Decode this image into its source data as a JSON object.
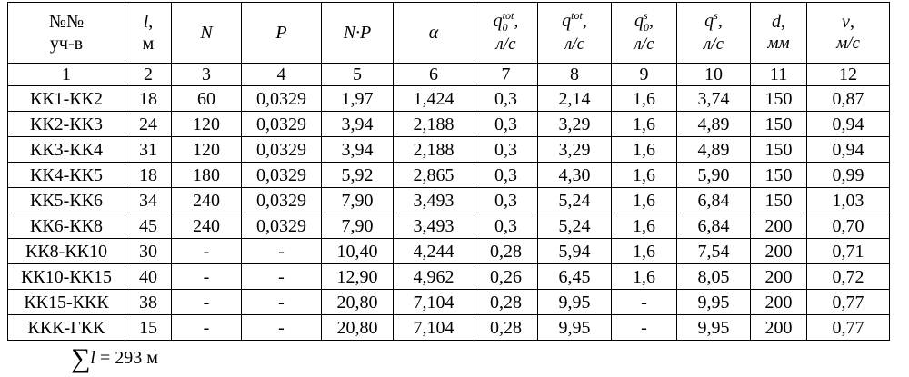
{
  "table": {
    "header": [
      {
        "line1": "№№",
        "line2": "уч-в"
      },
      {
        "sym": "l",
        "after": ",",
        "unit": "м"
      },
      {
        "sym": "N"
      },
      {
        "sym": "P"
      },
      {
        "sym": "N·P"
      },
      {
        "sym": "α"
      },
      {
        "sym": "q",
        "sub": "0",
        "sup": "tot",
        "after": ",",
        "unit": "л/с"
      },
      {
        "sym": "q",
        "sup": "tot",
        "after": ",",
        "unit": "л/с"
      },
      {
        "sym": "q",
        "sub": "0",
        "sup": "s",
        "after": ",",
        "unit": "л/с"
      },
      {
        "sym": "q",
        "sup": "s",
        "after": ",",
        "unit": "л/с"
      },
      {
        "sym": "d",
        "after": ",",
        "unit": "мм"
      },
      {
        "sym": "v",
        "after": ",",
        "unit": "м/с"
      }
    ],
    "numbers": [
      "1",
      "2",
      "3",
      "4",
      "5",
      "6",
      "7",
      "8",
      "9",
      "10",
      "11",
      "12"
    ],
    "rows": [
      [
        "КК1-КК2",
        "18",
        "60",
        "0,0329",
        "1,97",
        "1,424",
        "0,3",
        "2,14",
        "1,6",
        "3,74",
        "150",
        "0,87"
      ],
      [
        "КК2-КК3",
        "24",
        "120",
        "0,0329",
        "3,94",
        "2,188",
        "0,3",
        "3,29",
        "1,6",
        "4,89",
        "150",
        "0,94"
      ],
      [
        "КК3-КК4",
        "31",
        "120",
        "0,0329",
        "3,94",
        "2,188",
        "0,3",
        "3,29",
        "1,6",
        "4,89",
        "150",
        "0,94"
      ],
      [
        "КК4-КК5",
        "18",
        "180",
        "0,0329",
        "5,92",
        "2,865",
        "0,3",
        "4,30",
        "1,6",
        "5,90",
        "150",
        "0,99"
      ],
      [
        "КК5-КК6",
        "34",
        "240",
        "0,0329",
        "7,90",
        "3,493",
        "0,3",
        "5,24",
        "1,6",
        "6,84",
        "150",
        "1,03"
      ],
      [
        "КК6-КК8",
        "45",
        "240",
        "0,0329",
        "7,90",
        "3,493",
        "0,3",
        "5,24",
        "1,6",
        "6,84",
        "200",
        "0,70"
      ],
      [
        "КК8-КК10",
        "30",
        "-",
        "-",
        "10,40",
        "4,244",
        "0,28",
        "5,94",
        "1,6",
        "7,54",
        "200",
        "0,71"
      ],
      [
        "КК10-КК15",
        "40",
        "-",
        "-",
        "12,90",
        "4,962",
        "0,26",
        "6,45",
        "1,6",
        "8,05",
        "200",
        "0,72"
      ],
      [
        "КК15-ККК",
        "38",
        "-",
        "-",
        "20,80",
        "7,104",
        "0,28",
        "9,95",
        "-",
        "9,95",
        "200",
        "0,77"
      ],
      [
        "ККК-ГКК",
        "15",
        "-",
        "-",
        "20,80",
        "7,104",
        "0,28",
        "9,95",
        "-",
        "9,95",
        "200",
        "0,77"
      ]
    ]
  },
  "footer": {
    "symbol": "∑",
    "var": "l",
    "text": "= 293 м"
  }
}
